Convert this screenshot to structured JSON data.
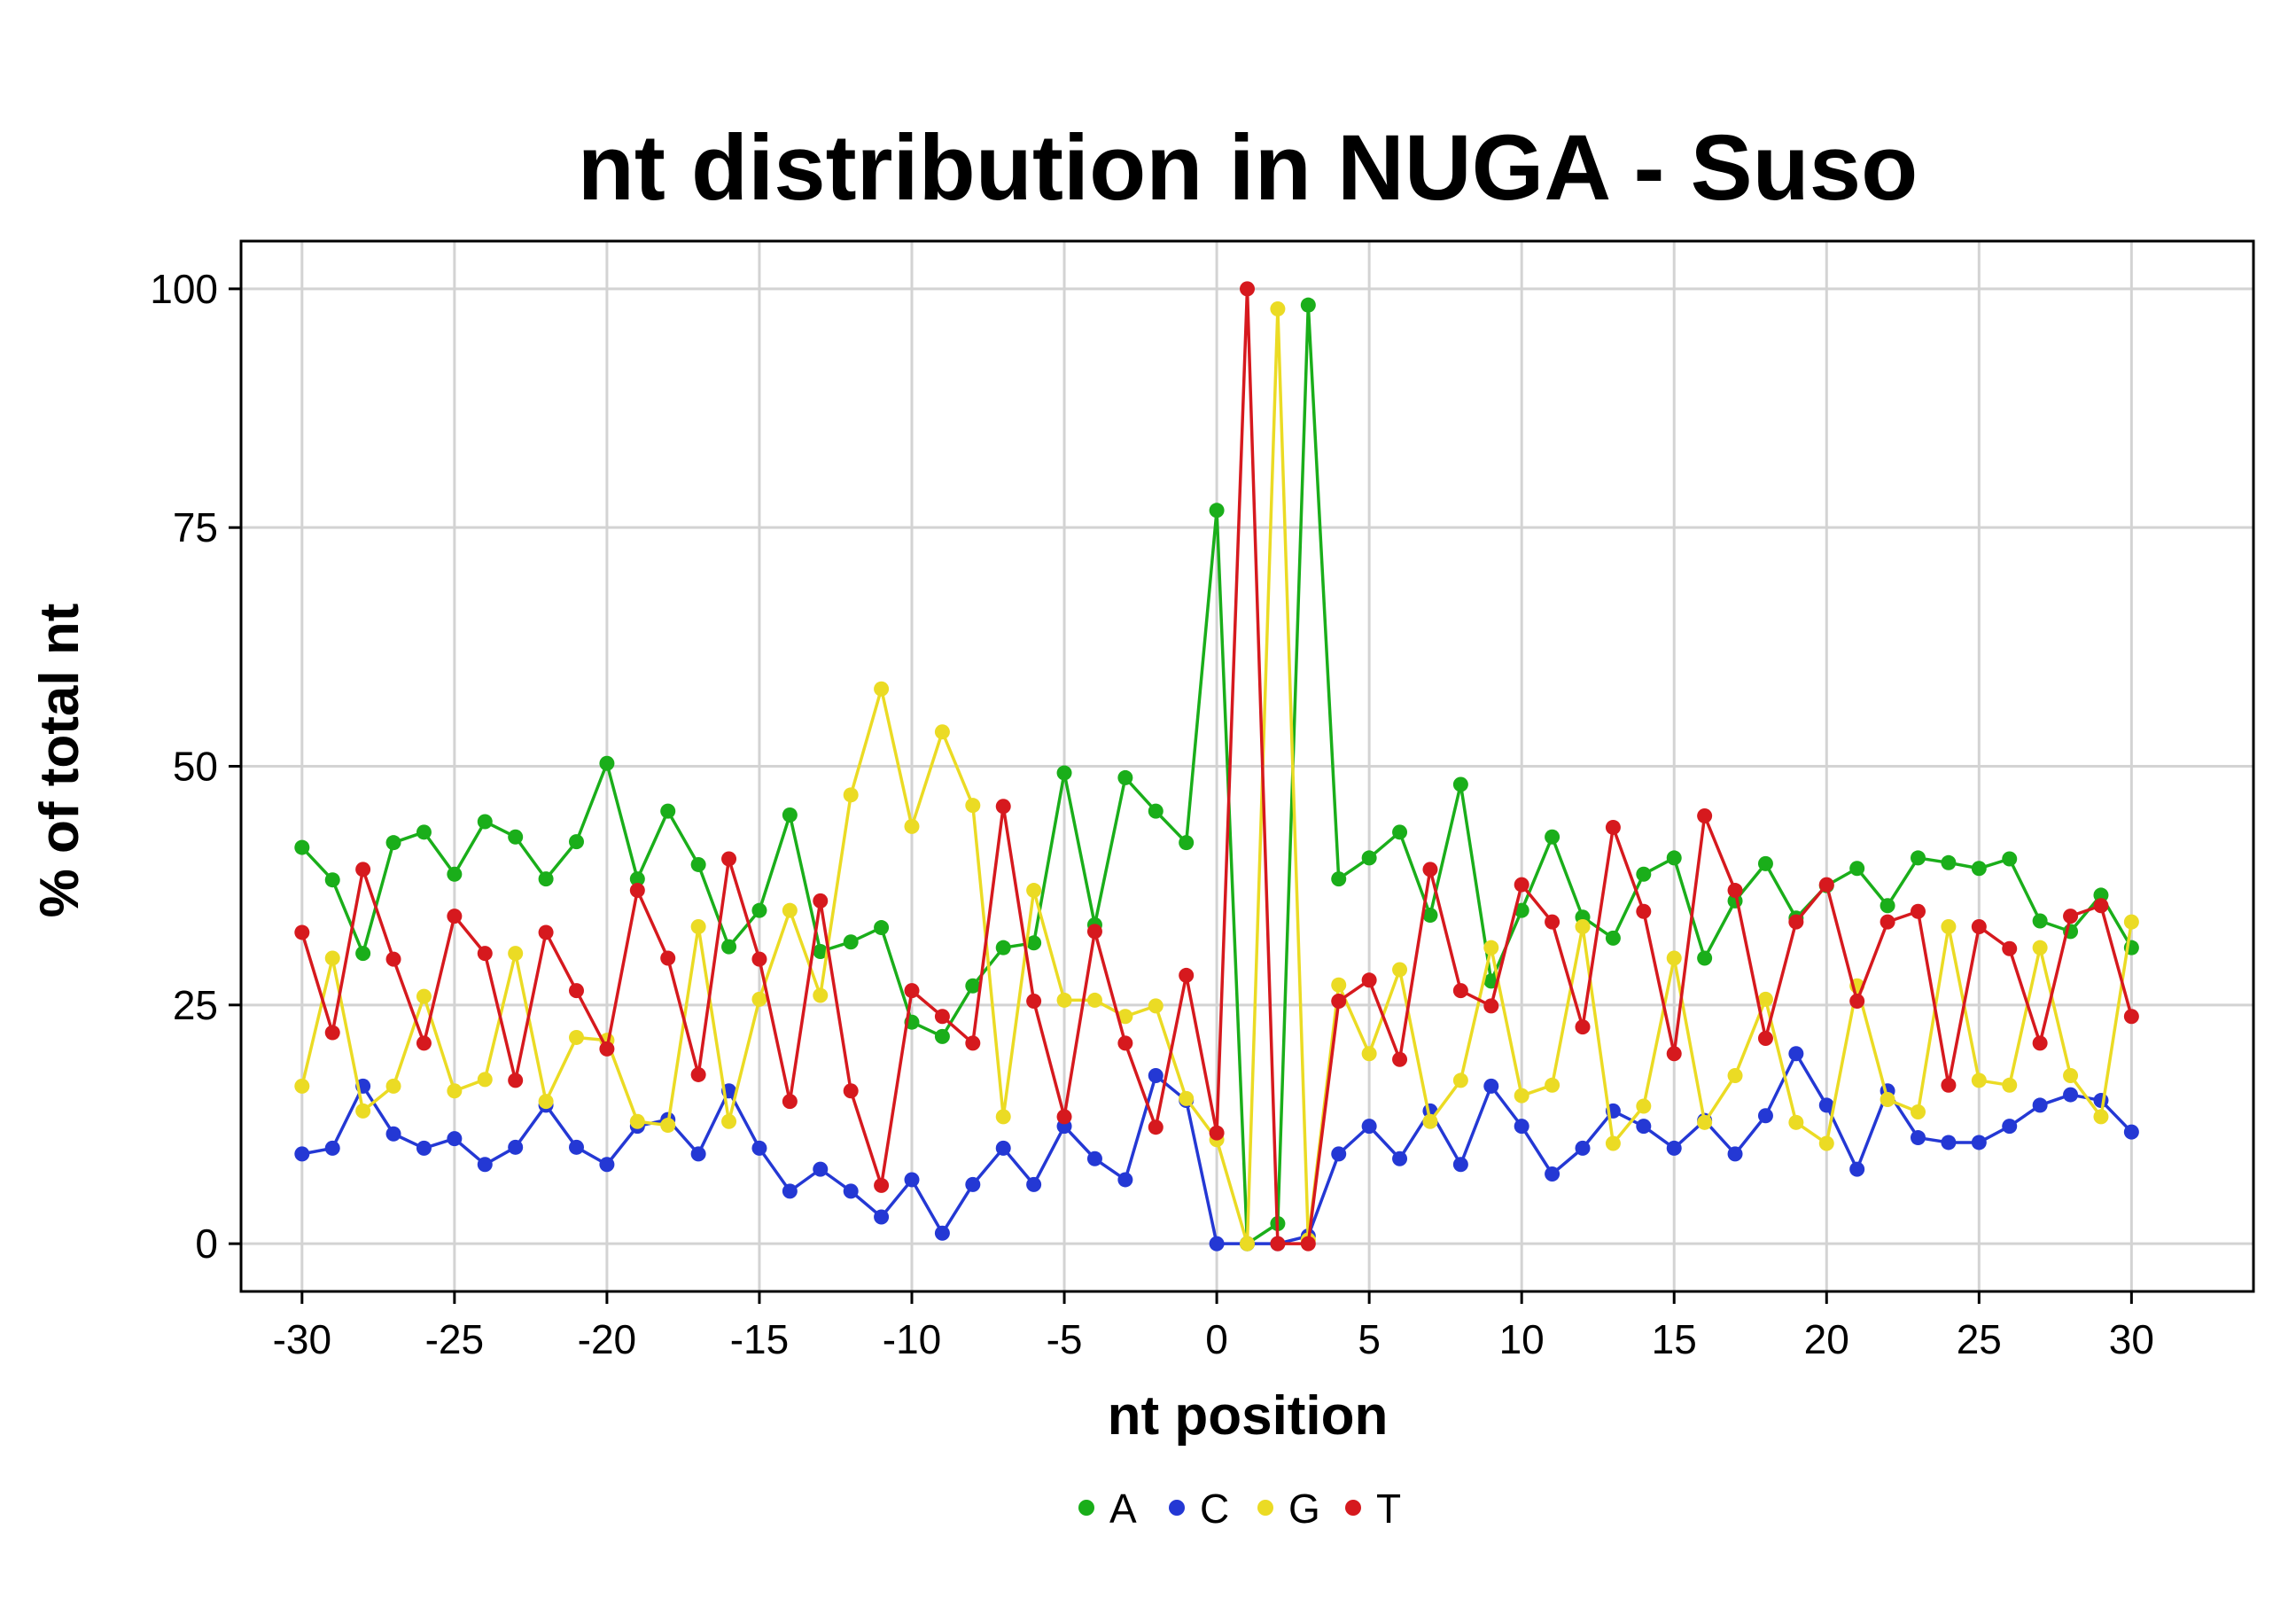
{
  "chart_data": {
    "type": "line",
    "title": "nt distribution in NUGA - Suso",
    "xlabel": "nt position",
    "ylabel": "% of total nt",
    "xlim": [
      -32,
      34
    ],
    "ylim": [
      -5,
      105
    ],
    "xticks": [
      -30,
      -25,
      -20,
      -15,
      -10,
      -5,
      0,
      5,
      10,
      15,
      20,
      25,
      30
    ],
    "yticks": [
      0,
      25,
      50,
      75,
      100
    ],
    "grid": true,
    "legend_position": "bottom",
    "x": [
      -30,
      -29,
      -28,
      -27,
      -26,
      -25,
      -24,
      -23,
      -22,
      -21,
      -20,
      -19,
      -18,
      -17,
      -16,
      -15,
      -14,
      -13,
      -12,
      -11,
      -10,
      -9,
      -8,
      -7,
      -6,
      -5,
      -4,
      -3,
      -2,
      -1,
      0,
      1,
      2,
      3,
      4,
      5,
      6,
      7,
      8,
      9,
      10,
      11,
      12,
      13,
      14,
      15,
      16,
      17,
      18,
      19,
      20,
      21,
      22,
      23,
      24,
      25,
      26,
      27,
      28,
      29,
      30
    ],
    "series": [
      {
        "name": "A",
        "color": "#1aae1a",
        "values": [
          41.5,
          38.1,
          30.4,
          42.0,
          43.1,
          38.7,
          44.2,
          42.6,
          38.2,
          42.1,
          50.3,
          38.2,
          45.3,
          39.7,
          31.1,
          34.9,
          44.9,
          30.6,
          31.6,
          33.1,
          23.2,
          21.7,
          27.0,
          31.0,
          31.5,
          49.3,
          33.4,
          48.8,
          45.3,
          42.0,
          76.8,
          0.0,
          2.1,
          98.3,
          38.2,
          40.4,
          43.1,
          34.4,
          48.1,
          27.5,
          34.9,
          42.6,
          34.2,
          32.0,
          38.7,
          40.4,
          29.9,
          35.9,
          39.8,
          34.1,
          37.5,
          39.3,
          35.4,
          40.4,
          39.9,
          39.3,
          40.3,
          33.8,
          32.7,
          36.5,
          31.0
        ]
      },
      {
        "name": "C",
        "color": "#2438d4",
        "values": [
          9.4,
          10.0,
          16.5,
          11.5,
          10.0,
          11.0,
          8.3,
          10.1,
          14.5,
          10.1,
          8.3,
          12.3,
          13.0,
          9.4,
          16.0,
          10.0,
          5.5,
          7.8,
          5.5,
          2.8,
          6.7,
          1.1,
          6.2,
          10.0,
          6.2,
          12.3,
          8.9,
          6.7,
          17.6,
          15.0,
          0.0,
          0.0,
          0.0,
          0.8,
          9.4,
          12.3,
          8.9,
          13.9,
          8.3,
          16.5,
          12.3,
          7.3,
          10.0,
          13.9,
          12.3,
          10.0,
          12.9,
          9.4,
          13.4,
          19.9,
          14.5,
          7.8,
          16.0,
          11.1,
          10.6,
          10.6,
          12.3,
          14.5,
          15.6,
          15.0,
          11.7
        ]
      },
      {
        "name": "G",
        "color": "#ebdb24",
        "values": [
          16.5,
          29.9,
          13.9,
          16.5,
          25.9,
          16.0,
          17.2,
          30.4,
          14.9,
          21.6,
          21.3,
          12.8,
          12.4,
          33.2,
          12.8,
          25.6,
          34.9,
          26.0,
          47.0,
          58.1,
          43.7,
          53.6,
          45.9,
          13.3,
          37.0,
          25.5,
          25.5,
          23.8,
          24.9,
          15.2,
          10.9,
          0.0,
          97.9,
          0.4,
          27.1,
          19.9,
          28.7,
          12.8,
          17.1,
          31.0,
          15.5,
          16.6,
          33.2,
          10.5,
          14.4,
          29.9,
          12.7,
          17.6,
          25.6,
          12.7,
          10.5,
          27.0,
          15.1,
          13.8,
          33.2,
          17.1,
          16.6,
          31.0,
          17.6,
          13.3,
          33.7
        ]
      },
      {
        "name": "T",
        "color": "#d6191e",
        "values": [
          32.6,
          22.1,
          39.2,
          29.8,
          21.0,
          34.3,
          30.4,
          17.1,
          32.6,
          26.5,
          20.4,
          37.0,
          29.9,
          17.7,
          40.3,
          29.8,
          14.9,
          35.9,
          16.0,
          6.1,
          26.5,
          23.8,
          21.0,
          45.8,
          25.4,
          13.3,
          32.7,
          21.0,
          12.2,
          28.1,
          11.6,
          100.0,
          0.0,
          0.0,
          25.4,
          27.6,
          19.3,
          39.2,
          26.5,
          24.9,
          37.6,
          33.7,
          22.7,
          43.6,
          34.8,
          19.9,
          44.8,
          37.0,
          21.5,
          33.7,
          37.6,
          25.4,
          33.7,
          34.8,
          16.6,
          33.2,
          30.9,
          21.0,
          34.3,
          35.4,
          23.8
        ]
      }
    ]
  }
}
